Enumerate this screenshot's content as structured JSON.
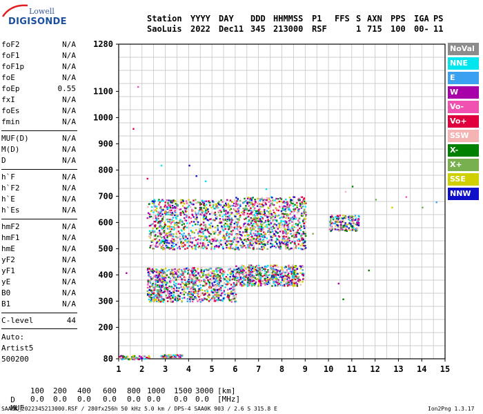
{
  "logo": {
    "line1": "Lowell",
    "line2": "DIGISONDE"
  },
  "header": {
    "row1": [
      "Station",
      "YYYY",
      "DAY",
      "DDD",
      "HHMMSS",
      "P1",
      "FFS",
      "S",
      "AXN",
      "PPS",
      "IGA",
      "PS"
    ],
    "row2": [
      "SaoLuis",
      "2022",
      "Dec11",
      "345",
      "213000",
      "RSF",
      "",
      "1",
      "715",
      "100",
      "00-",
      "11"
    ]
  },
  "params_groups": [
    [
      [
        "foF2",
        "N/A"
      ],
      [
        "foF1",
        "N/A"
      ],
      [
        "foF1p",
        "N/A"
      ],
      [
        "foE",
        "N/A"
      ],
      [
        "foEp",
        "0.55"
      ],
      [
        "fxI",
        "N/A"
      ],
      [
        "foEs",
        "N/A"
      ],
      [
        "fmin",
        "N/A"
      ]
    ],
    [
      [
        "MUF(D)",
        "N/A"
      ],
      [
        "M(D)",
        "N/A"
      ],
      [
        "D",
        "N/A"
      ]
    ],
    [
      [
        "h`F",
        "N/A"
      ],
      [
        "h`F2",
        "N/A"
      ],
      [
        "h`E",
        "N/A"
      ],
      [
        "h`Es",
        "N/A"
      ]
    ],
    [
      [
        "hmF2",
        "N/A"
      ],
      [
        "hmF1",
        "N/A"
      ],
      [
        "hmE",
        "N/A"
      ],
      [
        "yF2",
        "N/A"
      ],
      [
        "yF1",
        "N/A"
      ],
      [
        "yE",
        "N/A"
      ],
      [
        "B0",
        "N/A"
      ],
      [
        "B1",
        "N/A"
      ]
    ],
    [
      [
        "C-level",
        "44"
      ]
    ]
  ],
  "autoscale": {
    "label": "Auto:",
    "program": "Artist5",
    "version": "500200"
  },
  "legend": [
    {
      "label": "NoVal",
      "color": "#8c8c8c"
    },
    {
      "label": "NNE",
      "color": "#00e5ee"
    },
    {
      "label": "E",
      "color": "#3aa0f0"
    },
    {
      "label": "W",
      "color": "#a800a8"
    },
    {
      "label": "Vo-",
      "color": "#f050b0"
    },
    {
      "label": "Vo+",
      "color": "#e0003c"
    },
    {
      "label": "SSW",
      "color": "#f4b4b4"
    },
    {
      "label": "X-",
      "color": "#008000"
    },
    {
      "label": "X+",
      "color": "#78b050"
    },
    {
      "label": "SSE",
      "color": "#d0d000"
    },
    {
      "label": "NNW",
      "color": "#1010c8"
    }
  ],
  "muf_table": {
    "d_label": "D",
    "d_values": [
      "100",
      "200",
      "400",
      "600",
      "800",
      "1000",
      "1500",
      "3000"
    ],
    "d_unit": "[km]",
    "muf_label": "MUF",
    "muf_values": [
      "0.0",
      "0.0",
      "0.0",
      "0.0",
      "0.0",
      "0.0",
      "0.0",
      "0.0"
    ],
    "muf_unit": "[MHz]"
  },
  "footer": {
    "left": "SAA0K_2022345213000.RSF / 280fx256h 50 kHz 5.0 km / DPS-4 SAA0K 903 / 2.6 S 315.8 E",
    "right": "Ion2Png 1.3.17"
  },
  "chart_data": {
    "type": "scatter",
    "title": "",
    "xlabel": "",
    "ylabel": "",
    "x_unit": "MHz",
    "y_unit": "km",
    "xlim": [
      1,
      15
    ],
    "ylim": [
      80,
      1280
    ],
    "x_ticks": [
      1,
      2,
      3,
      4,
      5,
      6,
      7,
      8,
      9,
      10,
      11,
      12,
      13,
      14,
      15
    ],
    "y_ticks": [
      80,
      200,
      300,
      400,
      500,
      600,
      700,
      800,
      900,
      1000,
      1100,
      1280
    ],
    "grid": true,
    "x_grid_step": 0.5,
    "y_grid": [
      80,
      130,
      180,
      230,
      280,
      330,
      380,
      430,
      480,
      530,
      580,
      630,
      680,
      730,
      780,
      830,
      880,
      930,
      980,
      1030,
      1080,
      1130,
      1180,
      1230,
      1280
    ],
    "echo_regions": [
      {
        "name": "E / Es low",
        "x": [
          1.0,
          2.3
        ],
        "y": [
          80,
          95
        ]
      },
      {
        "name": "E / Es low 2",
        "x": [
          2.8,
          3.7
        ],
        "y": [
          88,
          98
        ]
      },
      {
        "name": "F trace main",
        "x": [
          2.2,
          6.0
        ],
        "y": [
          300,
          430
        ]
      },
      {
        "name": "F trace mid",
        "x": [
          6.0,
          8.9
        ],
        "y": [
          360,
          440
        ]
      },
      {
        "name": "F 2nd hop",
        "x": [
          2.2,
          6.0
        ],
        "y": [
          500,
          690
        ]
      },
      {
        "name": "F 2nd hop mid",
        "x": [
          6.0,
          9.0
        ],
        "y": [
          500,
          700
        ]
      },
      {
        "name": "F 2nd hop high",
        "x": [
          10.0,
          11.3
        ],
        "y": [
          570,
          630
        ]
      }
    ],
    "sparse_points": [
      {
        "x": 1.8,
        "y": 1120
      },
      {
        "x": 1.6,
        "y": 960
      },
      {
        "x": 2.2,
        "y": 770
      },
      {
        "x": 2.8,
        "y": 820
      },
      {
        "x": 4.0,
        "y": 820
      },
      {
        "x": 4.3,
        "y": 780
      },
      {
        "x": 4.7,
        "y": 760
      },
      {
        "x": 1.3,
        "y": 410
      },
      {
        "x": 10.4,
        "y": 370
      },
      {
        "x": 10.6,
        "y": 310
      },
      {
        "x": 12.0,
        "y": 690
      },
      {
        "x": 12.7,
        "y": 660
      },
      {
        "x": 13.3,
        "y": 700
      },
      {
        "x": 14.0,
        "y": 660
      },
      {
        "x": 14.6,
        "y": 680
      },
      {
        "x": 11.7,
        "y": 420
      },
      {
        "x": 11.0,
        "y": 740
      },
      {
        "x": 10.7,
        "y": 720
      },
      {
        "x": 9.3,
        "y": 560
      },
      {
        "x": 7.3,
        "y": 730
      }
    ]
  }
}
